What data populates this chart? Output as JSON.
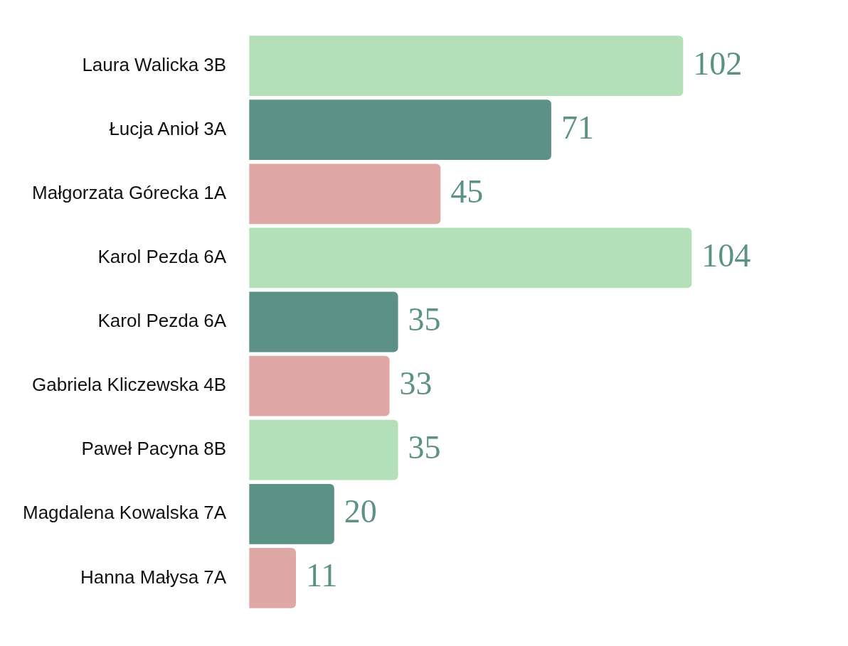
{
  "chart_data": {
    "type": "bar",
    "orientation": "horizontal",
    "categories": [
      "Laura Walicka 3B",
      "Łucja Anioł 3A",
      "Małgorzata Górecka 1A",
      "Karol Pezda 6A",
      "Karol Pezda 6A",
      "Gabriela Kliczewska 4B",
      "Paweł Pacyna 8B",
      "Magdalena Kowalska 7A",
      "Hanna Małysa 7A"
    ],
    "values": [
      102,
      71,
      45,
      104,
      35,
      33,
      35,
      20,
      11
    ],
    "colors": [
      "#b3dfb9",
      "#5c9285",
      "#dfa8a4",
      "#b3dfb9",
      "#5c9285",
      "#dfa8a4",
      "#b3dfb9",
      "#5c9285",
      "#dfa8a4"
    ],
    "data_labels": true
  }
}
